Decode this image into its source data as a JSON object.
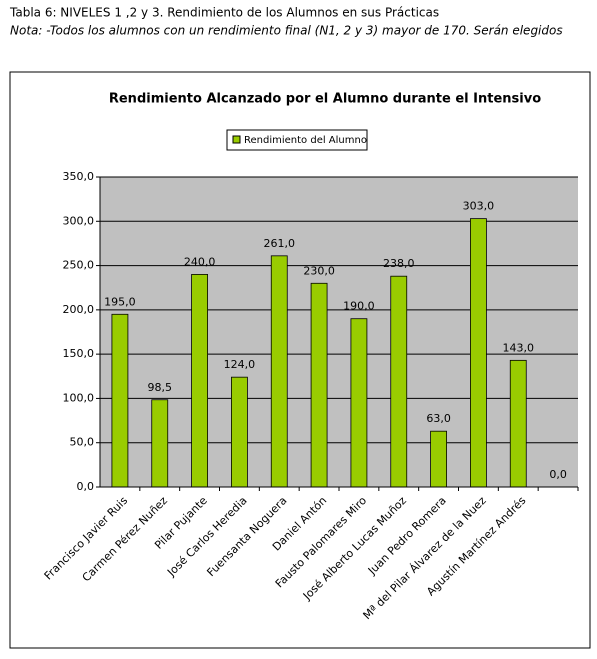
{
  "caption": "Tabla 6: NIVELES 1 ,2 y 3. Rendimiento de los Alumnos en sus Prácticas",
  "note": "Nota: -Todos los alumnos con un rendimiento final (N1, 2 y 3) mayor de 170. Serán elegidos",
  "chart_data": {
    "type": "bar",
    "title": "Rendimiento Alcanzado por el Alumno durante el Intensivo",
    "categories": [
      "Francisco Javier Ruis",
      "Carmen Pérez Nuñez",
      "Pilar Pujante",
      "José Carlos Heredia",
      "Fuensanta Noguera",
      "Daniel Antón",
      "Fausto Palomares Miro",
      "José Alberto Lucas Muñoz",
      "Juan Pedro Romera",
      "Mª del Pilar Álvarez de la Nuez",
      "Agustín Martínez Andrés",
      null
    ],
    "series": [
      {
        "name": "Rendimiento del Alumno",
        "color": "#99cc00",
        "values": [
          195,
          98.5,
          240,
          124,
          261,
          230,
          190,
          238,
          63,
          303,
          143,
          0
        ],
        "value_labels": [
          "195,0",
          "98,5",
          "240,0",
          "124,0",
          "261,0",
          "230,0",
          "190,0",
          "238,0",
          "63,0",
          "303,0",
          "143,0",
          "0,0"
        ]
      }
    ],
    "ylim": [
      0,
      350
    ],
    "yticks": [
      {
        "value": 0,
        "label": "0,0"
      },
      {
        "value": 50,
        "label": "50,0"
      },
      {
        "value": 100,
        "label": "100,0"
      },
      {
        "value": 150,
        "label": "150,0"
      },
      {
        "value": 200,
        "label": "200,0"
      },
      {
        "value": 250,
        "label": "250,0"
      },
      {
        "value": 300,
        "label": "300,0"
      },
      {
        "value": 350,
        "label": "350,0"
      }
    ],
    "grid": true,
    "legend": "top"
  }
}
